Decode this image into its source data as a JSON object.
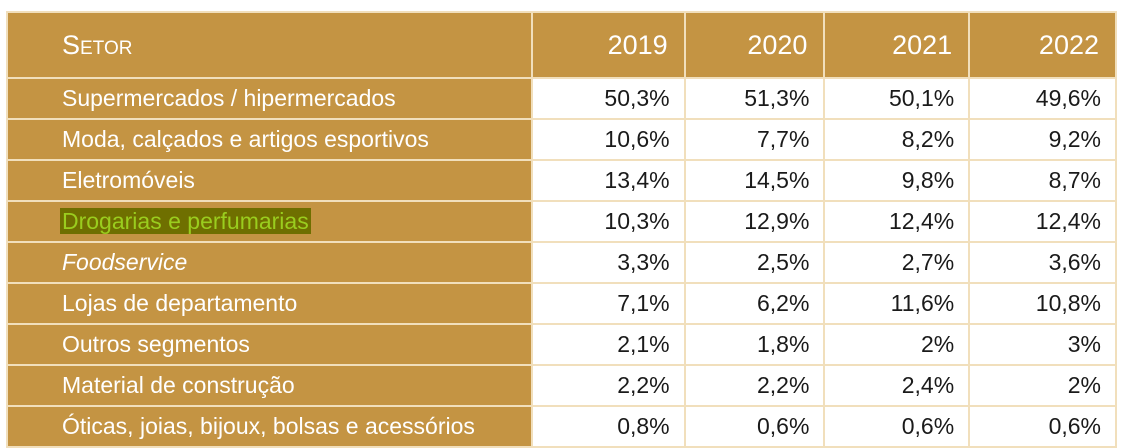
{
  "table": {
    "header": {
      "sector": "Setor",
      "years": [
        "2019",
        "2020",
        "2021",
        "2022"
      ]
    },
    "colors": {
      "gold": "#c49443",
      "highlight_bg": "#6f6f00",
      "highlight_text": "#9acd1e"
    },
    "rows": [
      {
        "label": "Supermercados / hipermercados",
        "values": [
          "50,3%",
          "51,3%",
          "50,1%",
          "49,6%"
        ]
      },
      {
        "label": "Moda, calçados e artigos esportivos",
        "values": [
          "10,6%",
          "7,7%",
          "8,2%",
          "9,2%"
        ]
      },
      {
        "label": "Eletromóveis",
        "values": [
          "13,4%",
          "14,5%",
          "9,8%",
          "8,7%"
        ]
      },
      {
        "label": "Drogarias e perfumarias",
        "highlighted": true,
        "values": [
          "10,3%",
          "12,9%",
          "12,4%",
          "12,4%"
        ]
      },
      {
        "label": "Foodservice",
        "italic": true,
        "values": [
          "3,3%",
          "2,5%",
          "2,7%",
          "3,6%"
        ]
      },
      {
        "label": "Lojas de departamento",
        "values": [
          "7,1%",
          "6,2%",
          "11,6%",
          "10,8%"
        ]
      },
      {
        "label": "Outros segmentos",
        "values": [
          "2,1%",
          "1,8%",
          "2%",
          "3%"
        ]
      },
      {
        "label": "Material de construção",
        "values": [
          "2,2%",
          "2,2%",
          "2,4%",
          "2%"
        ]
      },
      {
        "label": "Óticas, joias, bijoux, bolsas e acessórios",
        "values": [
          "0,8%",
          "0,6%",
          "0,6%",
          "0,6%"
        ]
      }
    ]
  }
}
